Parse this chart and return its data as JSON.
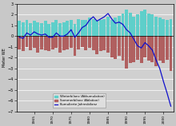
{
  "years": [
    1961,
    1962,
    1963,
    1964,
    1965,
    1966,
    1967,
    1968,
    1969,
    1970,
    1971,
    1972,
    1973,
    1974,
    1975,
    1976,
    1977,
    1978,
    1979,
    1980,
    1981,
    1982,
    1983,
    1984,
    1985,
    1986,
    1987,
    1988,
    1989,
    1990,
    1991,
    1992,
    1993,
    1994,
    1995,
    1996,
    1997,
    1998,
    1999,
    2000,
    2001,
    2002
  ],
  "winter": [
    1.4,
    1.3,
    1.5,
    1.2,
    1.4,
    1.3,
    1.2,
    1.4,
    1.1,
    1.3,
    1.5,
    1.2,
    1.3,
    1.4,
    1.5,
    1.1,
    1.6,
    1.5,
    1.5,
    1.7,
    1.6,
    1.4,
    1.5,
    1.6,
    1.8,
    1.5,
    1.7,
    1.9,
    2.1,
    2.5,
    2.2,
    1.8,
    2.0,
    2.3,
    2.5,
    2.1,
    2.0,
    1.8,
    1.7,
    1.6,
    1.5,
    1.6
  ],
  "summer": [
    -1.2,
    -1.4,
    -1.0,
    -1.3,
    -1.1,
    -1.5,
    -1.2,
    -1.3,
    -1.4,
    -1.2,
    -1.1,
    -1.5,
    -1.3,
    -1.2,
    -1.1,
    -1.8,
    -1.2,
    -1.0,
    -1.3,
    -1.1,
    -1.3,
    -1.7,
    -1.4,
    -1.3,
    -1.5,
    -2.0,
    -2.1,
    -1.8,
    -2.3,
    -3.0,
    -2.5,
    -2.4,
    -2.2,
    -2.5,
    -2.0,
    -2.3,
    -2.4,
    -2.8,
    -2.3,
    -2.5,
    -2.2,
    -3.2
  ],
  "cumulative": [
    -0.1,
    -0.2,
    0.3,
    0.1,
    0.4,
    0.2,
    0.1,
    0.2,
    -0.1,
    -0.1,
    0.3,
    0.0,
    0.0,
    0.2,
    0.6,
    -0.1,
    0.3,
    0.8,
    1.0,
    1.5,
    1.8,
    1.4,
    1.6,
    1.8,
    2.1,
    1.6,
    1.2,
    1.3,
    1.1,
    0.6,
    0.3,
    -0.3,
    -0.9,
    -1.1,
    -0.6,
    -0.9,
    -1.3,
    -2.2,
    -3.0,
    -4.2,
    -5.3,
    -6.5
  ],
  "winter_color": "#5ecfca",
  "summer_color": "#b06060",
  "line_color": "#1010cc",
  "bg_color": "#c8c8c8",
  "plot_bg": "#d0d0d0",
  "ylabel": "Meter WE",
  "ylim": [
    -7,
    3
  ],
  "yticks": [
    -7,
    -6,
    -5,
    -4,
    -3,
    -2,
    -1,
    0,
    1,
    2,
    3
  ],
  "legend_labels": [
    "Winterbilanz (Akkumulation)",
    "Sommerbilanz (Ablation)",
    "Kumulierte Jahresbilanz"
  ],
  "axis_fontsize": 5,
  "bar_width": 0.85
}
